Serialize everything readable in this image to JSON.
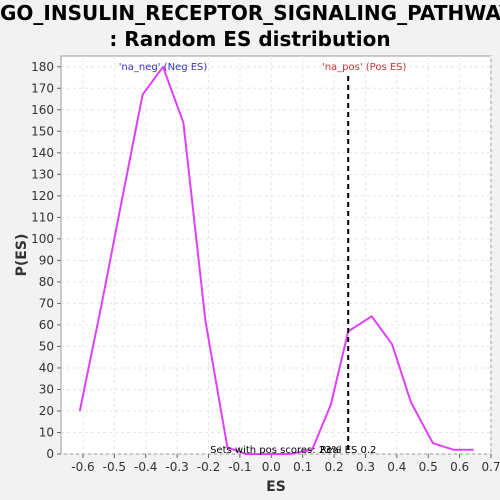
{
  "chart_data": {
    "type": "line",
    "title_line1": "GO_INSULIN_RECEPTOR_SIGNALING_PATHWAY",
    "title_line2": ": Random ES distribution",
    "xlabel": "ES",
    "ylabel": "P(ES)",
    "xlim": [
      -0.67,
      0.7
    ],
    "ylim": [
      0,
      185
    ],
    "xticks": [
      "-0.6",
      "-0.5",
      "-0.4",
      "-0.3",
      "-0.2",
      "-0.1",
      "0.0",
      "0.1",
      "0.2",
      "0.3",
      "0.4",
      "0.5",
      "0.6",
      "0.7"
    ],
    "xtick_values": [
      -0.6,
      -0.5,
      -0.4,
      -0.3,
      -0.2,
      -0.1,
      0.0,
      0.1,
      0.2,
      0.3,
      0.4,
      0.5,
      0.6,
      0.7
    ],
    "yticks": [
      "0",
      "10",
      "20",
      "30",
      "40",
      "50",
      "60",
      "70",
      "80",
      "90",
      "100",
      "110",
      "120",
      "130",
      "140",
      "150",
      "160",
      "170",
      "180"
    ],
    "ytick_values": [
      0,
      10,
      20,
      30,
      40,
      50,
      60,
      70,
      80,
      90,
      100,
      110,
      120,
      130,
      140,
      150,
      160,
      170,
      180
    ],
    "grid": true,
    "series": [
      {
        "color": "#e040fb",
        "x": [
          -0.61,
          -0.54,
          -0.48,
          -0.41,
          -0.345,
          -0.28,
          -0.21,
          -0.14,
          -0.08,
          -0.01,
          0.06,
          0.13,
          0.19,
          0.245,
          0.32,
          0.385,
          0.445,
          0.515,
          0.58,
          0.645
        ],
        "y": [
          20,
          70,
          115,
          167,
          180,
          154,
          62,
          3,
          0,
          0,
          0,
          2,
          23,
          57,
          64,
          51,
          24,
          5,
          2,
          2
        ]
      }
    ],
    "annotations": {
      "neg_label": "'na_neg' (Neg ES)",
      "pos_label": "'na_pos' (Pos ES)",
      "bottom_text": "Sets with pos scores: 23%",
      "real_es_text": "Real ES 0.2",
      "real_es_value": 0.245,
      "neg_color": "#3333cc",
      "pos_color": "#cc3333"
    }
  }
}
